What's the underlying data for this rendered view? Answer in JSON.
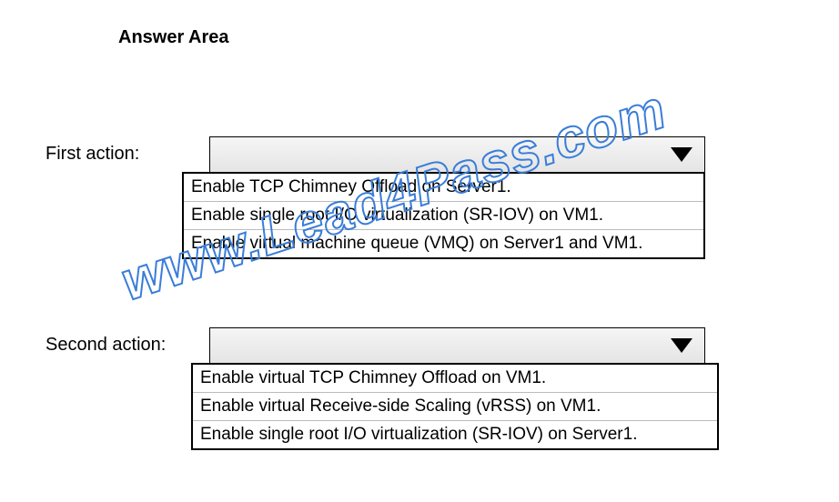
{
  "title": "Answer Area",
  "first": {
    "label": "First action:",
    "options": [
      "Enable TCP Chimney Offload on Server1.",
      "Enable single root I/O virtualization (SR-IOV) on VM1.",
      "Enable virtual machine queue (VMQ) on Server1 and VM1."
    ]
  },
  "second": {
    "label": "Second action:",
    "options": [
      "Enable virtual TCP Chimney Offload on VM1.",
      "Enable virtual Receive-side Scaling (vRSS) on VM1.",
      "Enable single root I/O virtualization (SR-IOV) on Server1."
    ]
  },
  "watermark": "www.Lead4Pass.com",
  "colors": {
    "text": "#000000",
    "background": "#ffffff",
    "watermark": "#3a7dd8",
    "select_bg_start": "#f5f5f5",
    "select_bg_end": "#e5e5e5",
    "border": "#000000",
    "divider": "#bbbbbb"
  }
}
